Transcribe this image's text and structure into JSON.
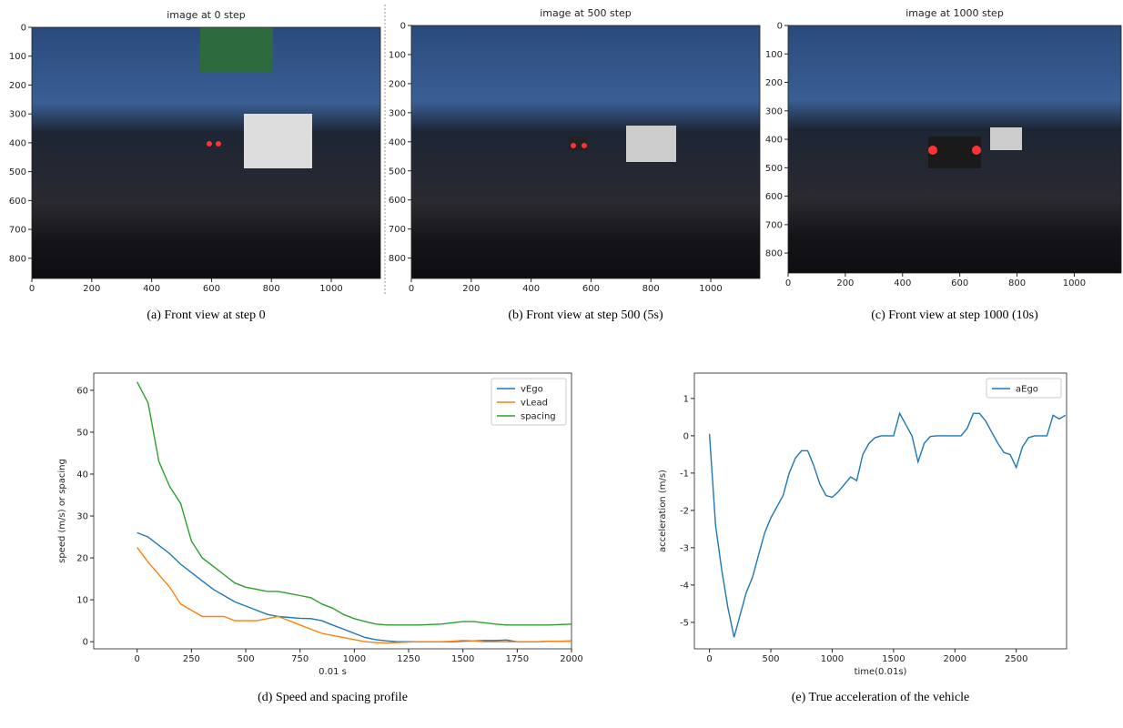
{
  "chart_data": [
    {
      "type": "image",
      "title": "image at 0 step",
      "caption": "(a) Front view at step 0",
      "xlim": [
        0,
        1164
      ],
      "ylim": [
        870,
        0
      ],
      "xticks": [
        0,
        200,
        400,
        600,
        800,
        1000
      ],
      "yticks": [
        0,
        100,
        200,
        300,
        400,
        500,
        600,
        700,
        800
      ]
    },
    {
      "type": "image",
      "title": "image at 500 step",
      "caption": "(b) Front view at step 500 (5s)",
      "xlim": [
        0,
        1164
      ],
      "ylim": [
        870,
        0
      ],
      "xticks": [
        0,
        200,
        400,
        600,
        800,
        1000
      ],
      "yticks": [
        0,
        100,
        200,
        300,
        400,
        500,
        600,
        700,
        800
      ]
    },
    {
      "type": "image",
      "title": "image at 1000 step",
      "caption": "(c) Front view at step 1000 (10s)",
      "xlim": [
        0,
        1164
      ],
      "ylim": [
        870,
        0
      ],
      "xticks": [
        0,
        200,
        400,
        600,
        800,
        1000
      ],
      "yticks": [
        0,
        100,
        200,
        300,
        400,
        500,
        600,
        700,
        800
      ]
    },
    {
      "type": "line",
      "caption": "(d) Speed and spacing profile",
      "x_label": "0.01 s",
      "y_label": "speed (m/s) or spacing",
      "legend": "upper right",
      "xlim": [
        -200,
        2000
      ],
      "ylim": [
        -1.7,
        64.1
      ],
      "xticks": [
        0,
        250,
        500,
        750,
        1000,
        1250,
        1500,
        1750,
        2000
      ],
      "yticks": [
        0,
        10,
        20,
        30,
        40,
        50,
        60
      ],
      "x": [
        0,
        50,
        100,
        150,
        200,
        250,
        300,
        350,
        400,
        450,
        500,
        550,
        600,
        650,
        700,
        750,
        800,
        850,
        900,
        950,
        1000,
        1050,
        1100,
        1150,
        1200,
        1250,
        1300,
        1350,
        1400,
        1450,
        1500,
        1550,
        1600,
        1650,
        1700,
        1750,
        1800,
        1850,
        1900,
        1950,
        2000
      ],
      "series": [
        {
          "name": "vEgo",
          "color": "#1f77b4",
          "values": [
            26,
            25,
            23,
            21,
            18.5,
            16.5,
            14.5,
            12.5,
            11,
            9.5,
            8.5,
            7.5,
            6.5,
            6,
            5.8,
            5.6,
            5.5,
            5,
            4,
            3,
            2,
            1,
            0.5,
            0.2,
            0,
            0,
            0,
            0,
            0,
            0,
            0.1,
            0.2,
            0.3,
            0.3,
            0.4,
            0,
            0,
            0,
            0.1,
            0.1,
            0.2
          ]
        },
        {
          "name": "vLead",
          "color": "#ff7f0e",
          "values": [
            22.5,
            19,
            16,
            13,
            9,
            7.5,
            6,
            6,
            6,
            5,
            5,
            5,
            5.5,
            6,
            5,
            4,
            3,
            2,
            1.5,
            1,
            0.5,
            0,
            -0.2,
            -0.3,
            -0.2,
            -0.1,
            0,
            0,
            0,
            0.1,
            0.3,
            0.2,
            0,
            0,
            0,
            0,
            0,
            0,
            0.1,
            0.1,
            0.1
          ]
        },
        {
          "name": "spacing",
          "color": "#2ca02c",
          "values": [
            62,
            57,
            43,
            37,
            33,
            24,
            20,
            18,
            16,
            14,
            13,
            12.5,
            12,
            12,
            11.5,
            11,
            10.5,
            9,
            8,
            6.5,
            5.5,
            4.8,
            4.2,
            4,
            4,
            4,
            4,
            4.1,
            4.2,
            4.5,
            4.8,
            4.8,
            4.5,
            4.2,
            4,
            4,
            4,
            4,
            4,
            4.1,
            4.2
          ]
        }
      ]
    },
    {
      "type": "line",
      "caption": "(e) True acceleration of the vehicle",
      "x_label": "time(0.01s)",
      "y_label": "acceleration (m/s)",
      "legend": "upper right",
      "xlim": [
        -123,
        2910
      ],
      "ylim": [
        -5.71,
        1.68
      ],
      "xticks": [
        0,
        500,
        1000,
        1500,
        2000,
        2500
      ],
      "yticks": [
        -5,
        -4,
        -3,
        -2,
        -1,
        0,
        1
      ],
      "x": [
        0,
        50,
        100,
        150,
        200,
        250,
        300,
        350,
        400,
        450,
        500,
        550,
        600,
        650,
        700,
        750,
        800,
        850,
        900,
        950,
        1000,
        1050,
        1100,
        1150,
        1200,
        1250,
        1300,
        1350,
        1400,
        1450,
        1500,
        1550,
        1600,
        1650,
        1700,
        1750,
        1800,
        1850,
        1900,
        1950,
        2000,
        2050,
        2100,
        2150,
        2200,
        2250,
        2300,
        2350,
        2400,
        2450,
        2500,
        2550,
        2600,
        2650,
        2700,
        2750,
        2800,
        2850,
        2900
      ],
      "series": [
        {
          "name": "aEgo",
          "color": "#1f77b4",
          "values": [
            0.05,
            -2.4,
            -3.6,
            -4.6,
            -5.4,
            -4.8,
            -4.2,
            -3.8,
            -3.2,
            -2.6,
            -2.2,
            -1.9,
            -1.6,
            -1.0,
            -0.6,
            -0.4,
            -0.4,
            -0.8,
            -1.3,
            -1.6,
            -1.65,
            -1.5,
            -1.3,
            -1.1,
            -1.2,
            -0.5,
            -0.2,
            -0.05,
            0,
            0,
            0,
            0.6,
            0.3,
            0,
            -0.7,
            -0.2,
            -0.02,
            0,
            0,
            0,
            0,
            0,
            0.2,
            0.6,
            0.6,
            0.4,
            0.1,
            -0.2,
            -0.45,
            -0.5,
            -0.85,
            -0.3,
            -0.05,
            0,
            0,
            0,
            0.55,
            0.45,
            0.55
          ]
        }
      ]
    }
  ]
}
